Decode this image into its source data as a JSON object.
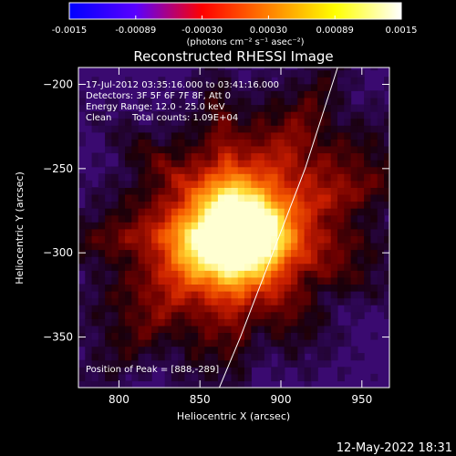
{
  "colorbar": {
    "ticks": [
      "-0.0015",
      "-0.00089",
      "-0.00030",
      "0.00030",
      "0.00089",
      "0.0015"
    ],
    "unit_label": "(photons cm⁻² s⁻¹ asec⁻²)",
    "colors": [
      "#0000ff",
      "#5a00ff",
      "#ff0000",
      "#ff8000",
      "#ffff00",
      "#ffffff"
    ]
  },
  "chart_data": {
    "type": "heatmap",
    "title": "Reconstructed RHESSI Image",
    "xlabel": "Heliocentric X (arcsec)",
    "ylabel": "Heliocentric Y (arcsec)",
    "xlim": [
      775,
      967
    ],
    "ylim": [
      -380,
      -190
    ],
    "xticks": [
      "800",
      "850",
      "900",
      "950"
    ],
    "yticks": [
      "-200",
      "-250",
      "-300",
      "-350"
    ],
    "annotations": [
      "17-Jul-2012 03:35:16.000 to 03:41:16.000",
      "Detectors: 3F 5F 6F 7F 8F, Att 0",
      "Energy Range: 12.0 - 25.0 keV",
      "Clean",
      "Total counts: 1.09E+04"
    ],
    "peak_label": "Position of Peak = [888,-289]",
    "peak": [
      888,
      -289
    ],
    "sources": [
      {
        "x": 888,
        "y": -289,
        "intensity": 1.0
      },
      {
        "x": 868,
        "y": -272,
        "intensity": 0.85
      },
      {
        "x": 848,
        "y": -295,
        "intensity": 0.75
      },
      {
        "x": 872,
        "y": -305,
        "intensity": 0.7
      }
    ],
    "limb_curve": [
      [
        935,
        -190
      ],
      [
        915,
        -250
      ],
      [
        895,
        -300
      ],
      [
        875,
        -350
      ],
      [
        862,
        -380
      ]
    ]
  },
  "timestamp": "12-May-2022 18:31"
}
